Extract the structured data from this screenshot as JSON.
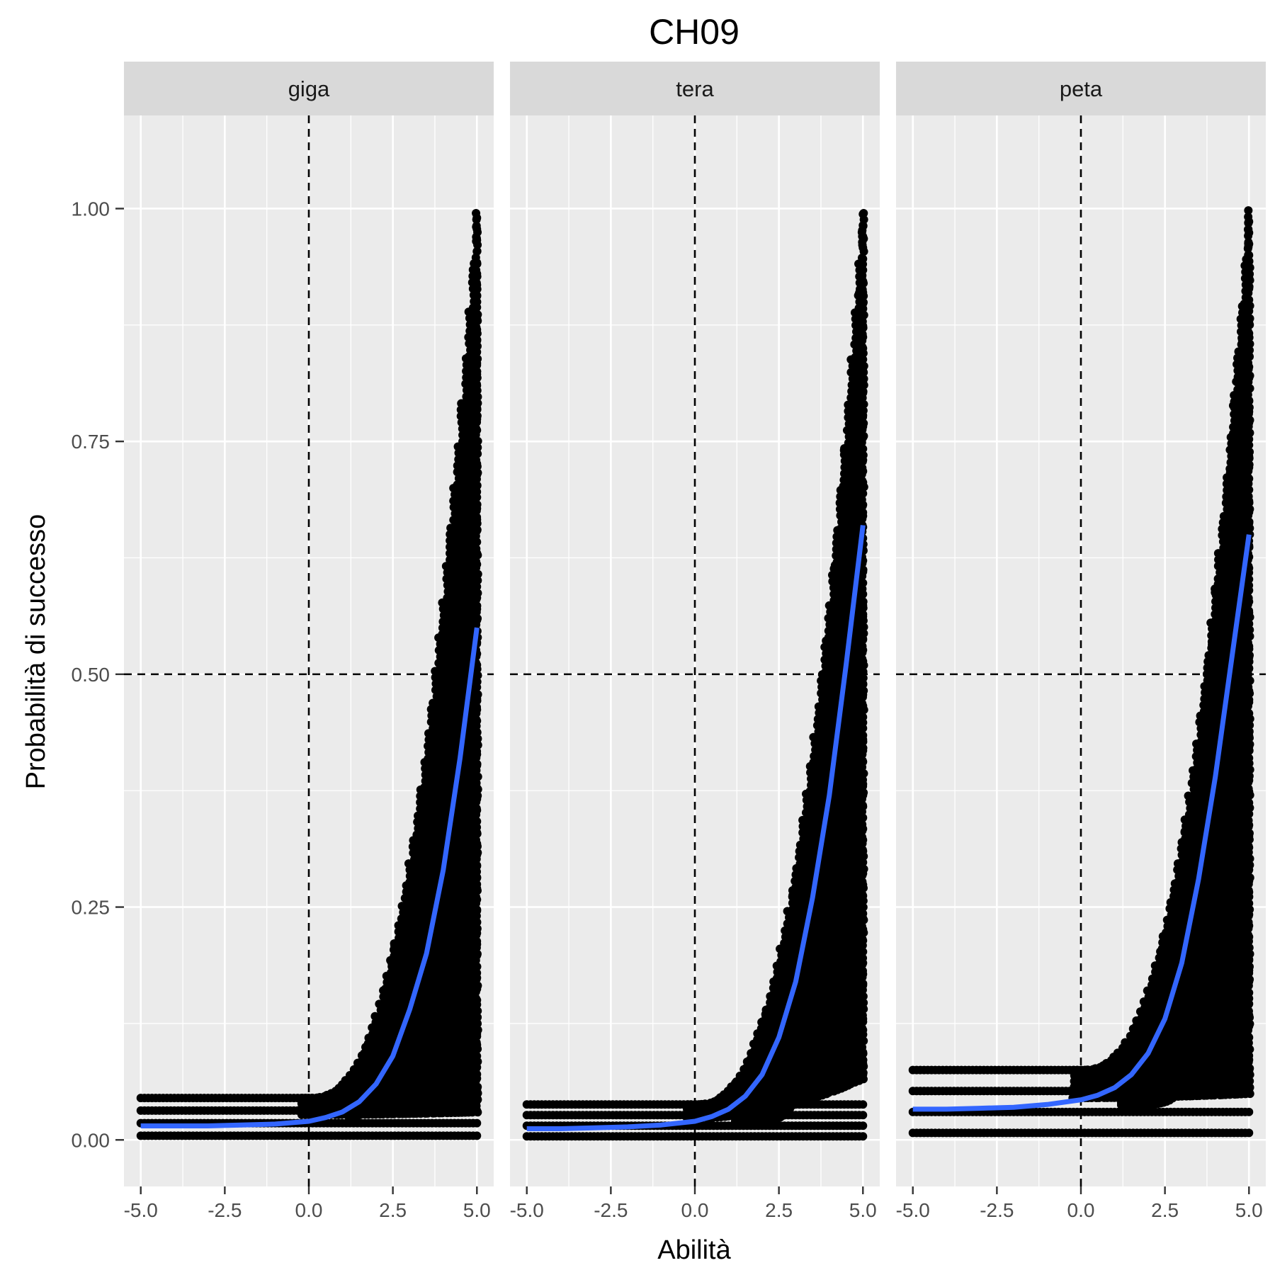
{
  "chart_data": {
    "type": "scatter",
    "title": "CH09",
    "xlabel": "Abilità",
    "ylabel": "Probabilità di successo",
    "xlim": [
      -5.5,
      5.5
    ],
    "ylim": [
      -0.05,
      1.1
    ],
    "x_ticks": [
      -5,
      -2.5,
      0,
      2.5,
      5
    ],
    "x_tick_labels": [
      "-5.0",
      "-2.5",
      "0.0",
      "2.5",
      "5.0"
    ],
    "y_ticks": [
      0,
      0.25,
      0.5,
      0.75,
      1
    ],
    "y_tick_labels": [
      "0.00",
      "0.25",
      "0.50",
      "0.75",
      "1.00"
    ],
    "reference_lines": {
      "x": 0,
      "y": 0.5,
      "style": "dashed"
    },
    "grid": true,
    "colors": {
      "points": "#000000",
      "smooth": "#3366ff",
      "panel_bg": "#ebebeb",
      "strip_bg": "#d9d9d9",
      "grid": "#ffffff"
    },
    "panels": [
      {
        "label": "giga",
        "point_band": {
          "floor_max": 0.045,
          "ceiling_at_5": 0.995,
          "lower_at_5": 0.03
        },
        "smooth": {
          "x": [
            -5,
            -4,
            -3,
            -2,
            -1,
            0,
            0.5,
            1,
            1.5,
            2,
            2.5,
            3,
            3.5,
            4,
            4.5,
            5
          ],
          "y": [
            0.015,
            0.015,
            0.015,
            0.016,
            0.017,
            0.02,
            0.024,
            0.03,
            0.041,
            0.06,
            0.09,
            0.14,
            0.2,
            0.29,
            0.41,
            0.55
          ]
        }
      },
      {
        "label": "tera",
        "point_band": {
          "floor_max": 0.038,
          "ceiling_at_5": 0.995,
          "lower_at_5": 0.07
        },
        "smooth": {
          "x": [
            -5,
            -4,
            -3,
            -2,
            -1,
            0,
            0.5,
            1,
            1.5,
            2,
            2.5,
            3,
            3.5,
            4,
            4.5,
            5
          ],
          "y": [
            0.012,
            0.012,
            0.013,
            0.014,
            0.016,
            0.02,
            0.025,
            0.033,
            0.047,
            0.07,
            0.11,
            0.17,
            0.26,
            0.37,
            0.51,
            0.66
          ]
        }
      },
      {
        "label": "peta",
        "point_band": {
          "floor_max": 0.075,
          "ceiling_at_5": 0.998,
          "lower_at_5": 0.05
        },
        "smooth": {
          "x": [
            -5,
            -4,
            -3,
            -2,
            -1,
            0,
            0.5,
            1,
            1.5,
            2,
            2.5,
            3,
            3.5,
            4,
            4.5,
            5
          ],
          "y": [
            0.033,
            0.033,
            0.034,
            0.035,
            0.038,
            0.043,
            0.048,
            0.056,
            0.07,
            0.093,
            0.13,
            0.19,
            0.28,
            0.39,
            0.52,
            0.65
          ]
        }
      }
    ]
  }
}
